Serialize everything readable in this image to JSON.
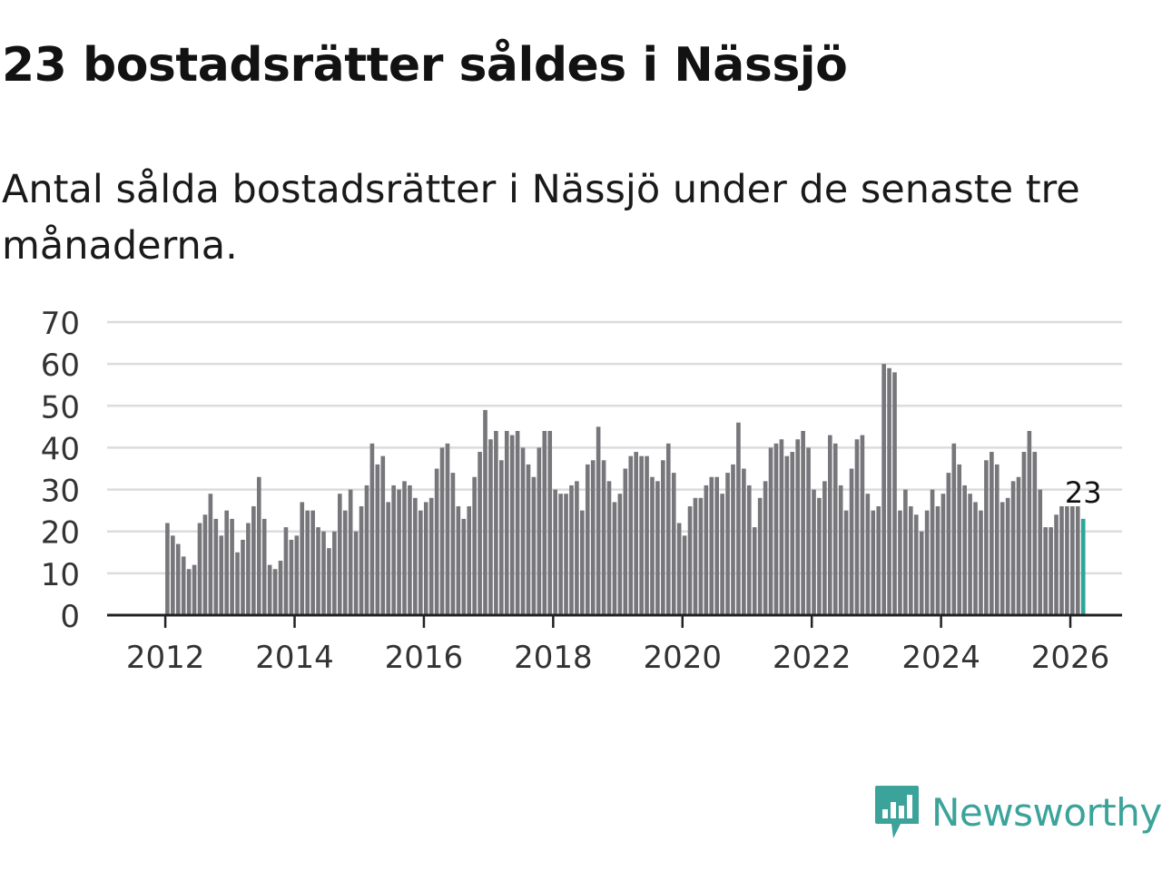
{
  "title": "23 bostadsrätter såldes i Nässjö",
  "subtitle": "Antal sålda bostadsrätter i Nässjö under de senaste tre månaderna.",
  "brand": {
    "name": "Newsworthy",
    "icon": "newsworthy-logo-icon"
  },
  "colors": {
    "bar": "#77767a",
    "highlight": "#2aa69b",
    "grid": "#dcdcdc",
    "axis": "#222222",
    "text": "#333333",
    "brand": "#3ba39a"
  },
  "chart_data": {
    "type": "bar",
    "title": "",
    "xlabel": "",
    "ylabel": "",
    "ylim": [
      0,
      70
    ],
    "yticks": [
      0,
      10,
      20,
      30,
      40,
      50,
      60,
      70
    ],
    "xlim": [
      2011.1,
      2026.8
    ],
    "xticks": [
      "2012",
      "2014",
      "2016",
      "2018",
      "2020",
      "2022",
      "2024",
      "2026"
    ],
    "grid": true,
    "highlight_label": "23",
    "series": [
      {
        "name": "Antal sålda bostadsrätter",
        "start": "2012-01",
        "values": [
          22,
          19,
          17,
          14,
          11,
          12,
          22,
          24,
          29,
          23,
          19,
          25,
          23,
          15,
          18,
          22,
          26,
          33,
          23,
          12,
          11,
          13,
          21,
          18,
          19,
          27,
          25,
          25,
          21,
          20,
          16,
          20,
          29,
          25,
          30,
          20,
          26,
          31,
          41,
          36,
          38,
          27,
          31,
          30,
          32,
          31,
          28,
          25,
          27,
          28,
          35,
          40,
          41,
          34,
          26,
          23,
          26,
          33,
          39,
          49,
          42,
          44,
          37,
          44,
          43,
          44,
          40,
          36,
          33,
          40,
          44,
          44,
          30,
          29,
          29,
          31,
          32,
          25,
          36,
          37,
          45,
          37,
          32,
          27,
          29,
          35,
          38,
          39,
          38,
          38,
          33,
          32,
          37,
          41,
          34,
          22,
          19,
          26,
          28,
          28,
          31,
          33,
          33,
          29,
          34,
          36,
          46,
          35,
          31,
          21,
          28,
          32,
          40,
          41,
          42,
          38,
          39,
          42,
          44,
          40,
          30,
          28,
          32,
          43,
          41,
          31,
          25,
          35,
          42,
          43,
          29,
          25,
          26,
          60,
          59,
          58,
          25,
          30,
          26,
          24,
          20,
          25,
          30,
          26,
          29,
          34,
          41,
          36,
          31,
          29,
          27,
          25,
          37,
          39,
          36,
          27,
          28,
          32,
          33,
          39,
          44,
          39,
          30,
          21,
          21,
          24,
          26,
          26,
          26,
          26,
          23
        ]
      }
    ]
  }
}
